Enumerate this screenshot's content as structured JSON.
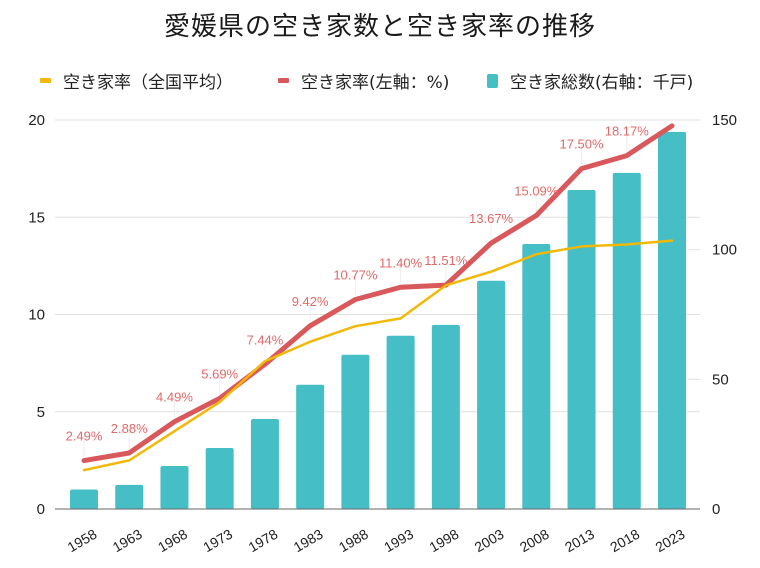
{
  "chart_data": {
    "type": "bar",
    "title": "愛媛県の空き家数と空き家率の推移",
    "xlabel": "",
    "ylabel_left": "",
    "ylabel_right": "",
    "categories": [
      "1958",
      "1963",
      "1968",
      "1973",
      "1978",
      "1983",
      "1988",
      "1993",
      "1998",
      "2003",
      "2008",
      "2013",
      "2018",
      "2023"
    ],
    "left_axis": {
      "range": [
        0,
        20
      ],
      "ticks": [
        "0",
        "5",
        "10",
        "15",
        "20"
      ],
      "tick_values": [
        0,
        5,
        10,
        15,
        20
      ],
      "grid": true
    },
    "right_axis": {
      "range": [
        0,
        150
      ],
      "ticks": [
        "0",
        "50",
        "100",
        "150"
      ],
      "tick_values": [
        0,
        50,
        100,
        150
      ]
    },
    "legend_position": "top",
    "series": [
      {
        "name": "空き家率（全国平均）",
        "type": "line",
        "axis": "left",
        "color": "#f2b807",
        "values": [
          2.0,
          2.5,
          4.0,
          5.5,
          7.6,
          8.6,
          9.4,
          9.8,
          11.5,
          12.2,
          13.1,
          13.5,
          13.6,
          13.8
        ]
      },
      {
        "name": "空き家率(左軸：%)",
        "type": "line",
        "axis": "left",
        "color": "#d9585c",
        "values": [
          2.49,
          2.88,
          4.49,
          5.69,
          7.44,
          9.42,
          10.77,
          11.4,
          11.51,
          13.67,
          15.09,
          17.5,
          18.17,
          19.7
        ],
        "data_labels": [
          "2.49%",
          "2.88%",
          "4.49%",
          "5.69%",
          "7.44%",
          "9.42%",
          "10.77%",
          "11.40%",
          "11.51%",
          "13.67%",
          "15.09%",
          "17.50%",
          "18.17%",
          ""
        ]
      },
      {
        "name": "空き家総数(右軸：千戸)",
        "type": "bar",
        "axis": "right",
        "color": "#45bec6",
        "values": [
          7.5,
          9.3,
          16.6,
          23.5,
          34.7,
          47.9,
          59.5,
          66.8,
          71.0,
          88.0,
          102.2,
          123.0,
          129.6,
          145.4
        ]
      }
    ]
  }
}
